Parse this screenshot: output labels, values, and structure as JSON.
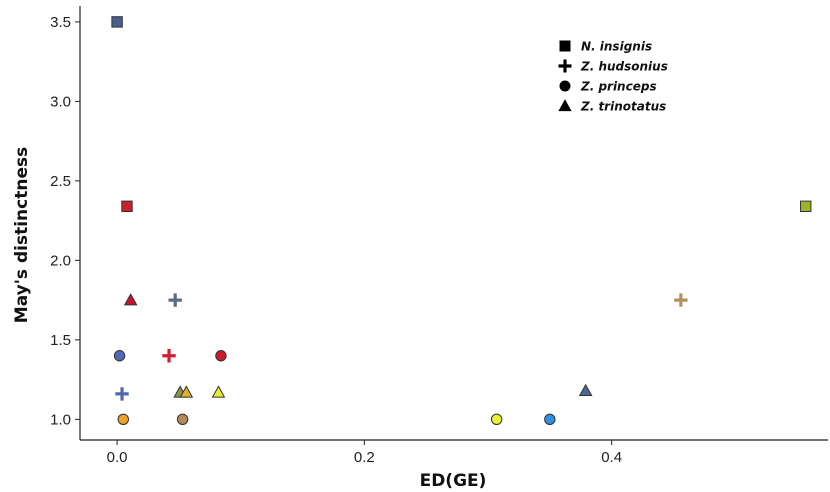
{
  "chart_data": {
    "type": "scatter",
    "title": "",
    "xlabel": "ED(GE)",
    "ylabel": "May's distinctness",
    "xlim": [
      -0.03,
      0.575
    ],
    "ylim": [
      0.87,
      3.6
    ],
    "xticks": [
      0.0,
      0.2,
      0.4
    ],
    "xtick_labels": [
      "0.0",
      "0.2",
      "0.4"
    ],
    "yticks": [
      1.0,
      1.5,
      2.0,
      2.5,
      3.0,
      3.5
    ],
    "ytick_labels": [
      "1.0",
      "1.5",
      "2.0",
      "2.5",
      "3.0",
      "3.5"
    ],
    "grid": false,
    "legend_position": "top-right",
    "legend": [
      {
        "label": "N. insignis",
        "shape": "square"
      },
      {
        "label": "Z. hudsonius",
        "shape": "cross"
      },
      {
        "label": "Z. princeps",
        "shape": "circle"
      },
      {
        "label": "Z. trinotatus",
        "shape": "triangle"
      }
    ],
    "points": [
      {
        "x": 0.0,
        "y": 3.5,
        "shape": "square",
        "color": "#4a5f8f"
      },
      {
        "x": 0.008,
        "y": 2.34,
        "shape": "square",
        "color": "#cc1f2e"
      },
      {
        "x": 0.557,
        "y": 2.34,
        "shape": "square",
        "color": "#9ab526"
      },
      {
        "x": 0.011,
        "y": 1.75,
        "shape": "triangle",
        "color": "#c0182a"
      },
      {
        "x": 0.047,
        "y": 1.75,
        "shape": "cross",
        "color": "#5a6c80"
      },
      {
        "x": 0.456,
        "y": 1.75,
        "shape": "cross",
        "color": "#b3915a"
      },
      {
        "x": 0.002,
        "y": 1.4,
        "shape": "circle",
        "color": "#4f68b8"
      },
      {
        "x": 0.042,
        "y": 1.4,
        "shape": "cross",
        "color": "#d11f2f"
      },
      {
        "x": 0.084,
        "y": 1.4,
        "shape": "circle",
        "color": "#c81e2c"
      },
      {
        "x": 0.004,
        "y": 1.16,
        "shape": "cross",
        "color": "#4f6aa8"
      },
      {
        "x": 0.051,
        "y": 1.17,
        "shape": "triangle",
        "color": "#8a9448"
      },
      {
        "x": 0.056,
        "y": 1.17,
        "shape": "triangle",
        "color": "#e0b030"
      },
      {
        "x": 0.082,
        "y": 1.17,
        "shape": "triangle",
        "color": "#e6ee2a"
      },
      {
        "x": 0.379,
        "y": 1.18,
        "shape": "triangle",
        "color": "#4d6896"
      },
      {
        "x": 0.005,
        "y": 1.0,
        "shape": "circle",
        "color": "#f0a228"
      },
      {
        "x": 0.053,
        "y": 1.0,
        "shape": "circle",
        "color": "#b08a58"
      },
      {
        "x": 0.307,
        "y": 1.0,
        "shape": "circle",
        "color": "#e8f03a"
      },
      {
        "x": 0.35,
        "y": 1.0,
        "shape": "circle",
        "color": "#2f8fe0"
      }
    ]
  }
}
